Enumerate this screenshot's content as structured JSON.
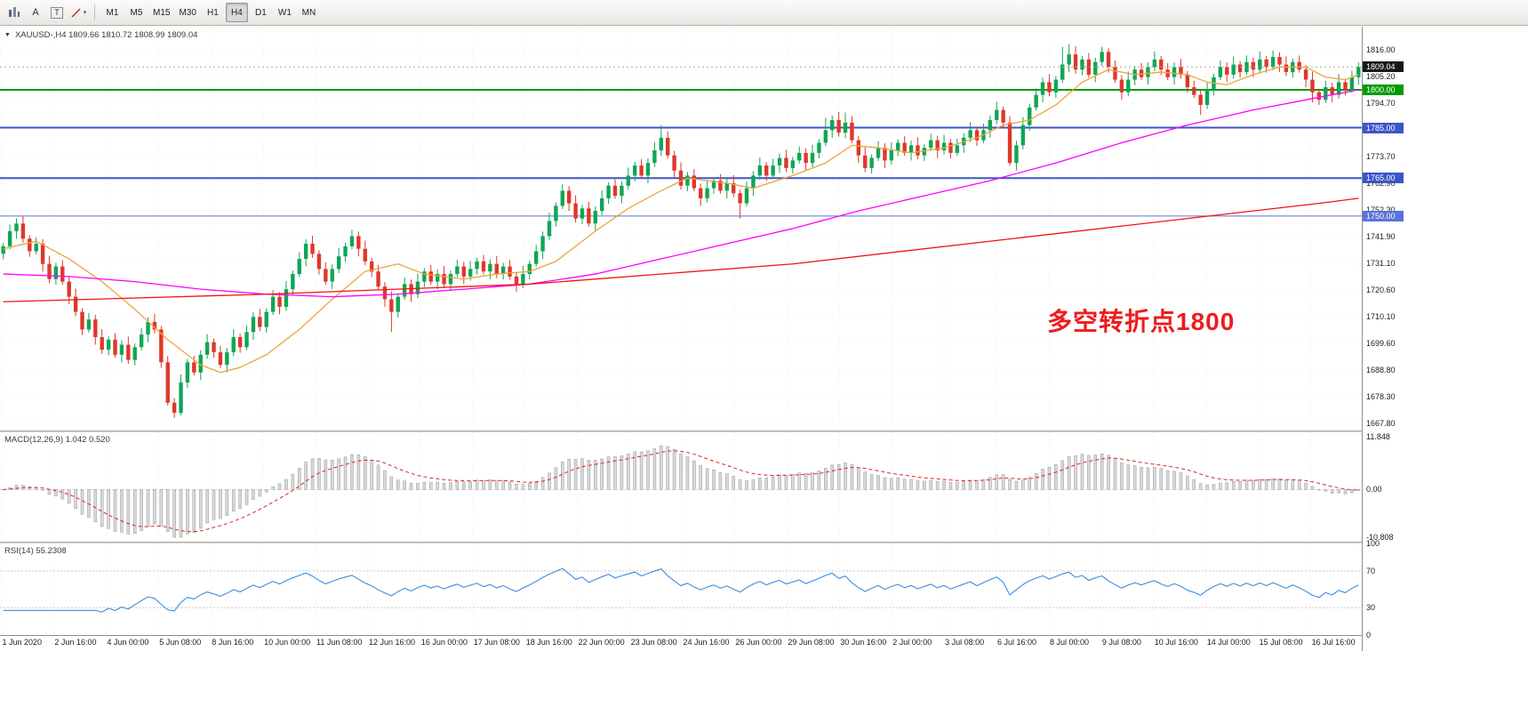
{
  "toolbar": {
    "tools": {
      "annotate_label": "A",
      "text_label": "T"
    },
    "timeframes": [
      "M1",
      "M5",
      "M15",
      "M30",
      "H1",
      "H4",
      "D1",
      "W1",
      "MN"
    ],
    "active_timeframe": "H4"
  },
  "chart": {
    "symbol_ohlc": "XAUUSD-,H4 1809.66 1810.72 1808.99 1809.04",
    "annotation_text": "多空转折点1800"
  },
  "indicators": {
    "macd_label": "MACD(12,26,9) 1.042 0.520",
    "rsi_label": "RSI(14) 55.2308"
  },
  "chart_data": {
    "type": "candlestick",
    "symbol": "XAUUSD",
    "timeframe": "H4",
    "current_ohlc": {
      "open": 1809.66,
      "high": 1810.72,
      "low": 1808.99,
      "close": 1809.04
    },
    "price_axis": {
      "top_price": 1825,
      "bottom_price": 1665,
      "ticks": [
        "1816.00",
        "1805.20",
        "1794.70",
        "1773.70",
        "1762.90",
        "1752.30",
        "1741.90",
        "1731.10",
        "1720.60",
        "1710.10",
        "1699.60",
        "1688.80",
        "1678.30",
        "1667.80"
      ]
    },
    "current_price": {
      "value": 1809.04,
      "label": "1809.04",
      "badge_color": "#15181c"
    },
    "levels": [
      {
        "price": 1800,
        "label": "1800.00",
        "color": "#009b00",
        "width": 2
      },
      {
        "price": 1785,
        "label": "1785.00",
        "color": "#3c55c8",
        "width": 2
      },
      {
        "price": 1765,
        "label": "1765.00",
        "color": "#3c55c8",
        "width": 2
      },
      {
        "price": 1750,
        "label": "1750.00",
        "color": "#5b74d8",
        "width": 1
      }
    ],
    "candles": {
      "first_open": 1735,
      "bull_color": "#0fa655",
      "bear_color": "#e0372a",
      "closes": [
        1738,
        1744,
        1747,
        1741,
        1736,
        1739,
        1731,
        1725,
        1730,
        1724,
        1718,
        1712,
        1705,
        1709,
        1702,
        1697,
        1701,
        1695,
        1699,
        1693,
        1698,
        1703,
        1708,
        1705,
        1692,
        1676,
        1672,
        1684,
        1692,
        1688,
        1695,
        1700,
        1696,
        1691,
        1696,
        1702,
        1698,
        1704,
        1710,
        1706,
        1712,
        1718,
        1714,
        1721,
        1727,
        1733,
        1739,
        1735,
        1729,
        1724,
        1729,
        1734,
        1738,
        1742,
        1737,
        1732,
        1728,
        1722,
        1717,
        1712,
        1718,
        1723,
        1719,
        1724,
        1728,
        1724,
        1727,
        1723,
        1727,
        1730,
        1726,
        1729,
        1732,
        1728,
        1731,
        1727,
        1730,
        1726,
        1723,
        1727,
        1731,
        1736,
        1742,
        1748,
        1754,
        1760,
        1755,
        1749,
        1753,
        1747,
        1752,
        1757,
        1762,
        1758,
        1762,
        1766,
        1770,
        1766,
        1771,
        1776,
        1781,
        1774,
        1768,
        1762,
        1766,
        1761,
        1757,
        1761,
        1764,
        1760,
        1763,
        1759,
        1755,
        1761,
        1766,
        1770,
        1766,
        1770,
        1773,
        1769,
        1772,
        1775,
        1771,
        1775,
        1779,
        1784,
        1788,
        1783,
        1787,
        1780,
        1774,
        1769,
        1773,
        1777,
        1772,
        1776,
        1779,
        1775,
        1778,
        1774,
        1777,
        1780,
        1776,
        1779,
        1775,
        1778,
        1781,
        1784,
        1780,
        1784,
        1788,
        1792,
        1787,
        1771,
        1778,
        1786,
        1793,
        1798,
        1803,
        1799,
        1804,
        1810,
        1814,
        1808,
        1812,
        1806,
        1811,
        1815,
        1809,
        1804,
        1799,
        1804,
        1808,
        1805,
        1809,
        1812,
        1808,
        1805,
        1809,
        1806,
        1801,
        1798,
        1794,
        1800,
        1805,
        1809,
        1806,
        1810,
        1807,
        1811,
        1808,
        1812,
        1809,
        1813,
        1810,
        1807,
        1811,
        1808,
        1804,
        1799,
        1796,
        1801,
        1798,
        1803,
        1800,
        1805,
        1809
      ],
      "wick_overrides": {
        "2": {
          "high": 1749
        },
        "26": {
          "low": 1670
        },
        "27": {
          "low": 1671
        },
        "59": {
          "low": 1704
        },
        "100": {
          "high": 1786
        },
        "112": {
          "low": 1749
        },
        "125": {
          "high": 1789
        },
        "128": {
          "high": 1791
        },
        "161": {
          "high": 1817
        },
        "162": {
          "high": 1818
        },
        "167": {
          "high": 1817
        },
        "182": {
          "low": 1790
        },
        "199": {
          "low": 1795
        },
        "200": {
          "low": 1794
        }
      }
    },
    "moving_averages": [
      {
        "name": "ma-fast-orange",
        "color": "#eda53a",
        "anchors": [
          [
            0,
            1737
          ],
          [
            5,
            1740
          ],
          [
            10,
            1733
          ],
          [
            15,
            1724
          ],
          [
            20,
            1713
          ],
          [
            25,
            1701
          ],
          [
            30,
            1691
          ],
          [
            33,
            1688
          ],
          [
            36,
            1690
          ],
          [
            40,
            1695
          ],
          [
            45,
            1705
          ],
          [
            50,
            1717
          ],
          [
            55,
            1728
          ],
          [
            60,
            1731
          ],
          [
            64,
            1727
          ],
          [
            70,
            1725
          ],
          [
            75,
            1727
          ],
          [
            80,
            1728
          ],
          [
            84,
            1732
          ],
          [
            90,
            1744
          ],
          [
            95,
            1753
          ],
          [
            100,
            1760
          ],
          [
            104,
            1765
          ],
          [
            110,
            1763
          ],
          [
            114,
            1761
          ],
          [
            120,
            1766
          ],
          [
            125,
            1771
          ],
          [
            129,
            1778
          ],
          [
            133,
            1777
          ],
          [
            138,
            1775
          ],
          [
            143,
            1777
          ],
          [
            148,
            1781
          ],
          [
            152,
            1786
          ],
          [
            156,
            1788
          ],
          [
            160,
            1794
          ],
          [
            164,
            1803
          ],
          [
            168,
            1808
          ],
          [
            172,
            1806
          ],
          [
            176,
            1807
          ],
          [
            180,
            1806
          ],
          [
            183,
            1803
          ],
          [
            186,
            1802
          ],
          [
            190,
            1806
          ],
          [
            194,
            1809
          ],
          [
            198,
            1809
          ],
          [
            201,
            1805
          ],
          [
            204,
            1804
          ],
          [
            206,
            1806
          ]
        ]
      },
      {
        "name": "ma-medium-magenta",
        "color": "#ff00ff",
        "anchors": [
          [
            0,
            1727
          ],
          [
            10,
            1726
          ],
          [
            20,
            1724
          ],
          [
            30,
            1721
          ],
          [
            40,
            1719
          ],
          [
            50,
            1718
          ],
          [
            60,
            1719
          ],
          [
            70,
            1721
          ],
          [
            80,
            1723
          ],
          [
            90,
            1727
          ],
          [
            100,
            1733
          ],
          [
            110,
            1739
          ],
          [
            120,
            1745
          ],
          [
            130,
            1752
          ],
          [
            140,
            1758
          ],
          [
            150,
            1764
          ],
          [
            160,
            1771
          ],
          [
            170,
            1779
          ],
          [
            180,
            1786
          ],
          [
            190,
            1792
          ],
          [
            200,
            1797
          ],
          [
            206,
            1800
          ]
        ]
      },
      {
        "name": "ma-slow-red",
        "color": "#f01414",
        "anchors": [
          [
            0,
            1716
          ],
          [
            40,
            1719
          ],
          [
            80,
            1723
          ],
          [
            120,
            1731
          ],
          [
            160,
            1743
          ],
          [
            200,
            1755
          ],
          [
            206,
            1757
          ]
        ]
      }
    ],
    "macd": {
      "axis_labels": [
        "11.848",
        "0.00",
        "-10.808"
      ],
      "axis_values": [
        11.848,
        0,
        -10.808
      ],
      "histogram_fill": "#d8d8d8",
      "histogram_stroke": "#a6a6a6",
      "signal_color": "#e22222"
    },
    "rsi": {
      "axis_labels": [
        "100",
        "70",
        "30",
        "0"
      ],
      "levels": [
        70,
        30
      ],
      "color": "#3a8dde"
    },
    "time_axis": {
      "labels": [
        "1 Jun 2020",
        "2 Jun 16:00",
        "4 Jun 00:00",
        "5 Jun 08:00",
        "8 Jun 16:00",
        "10 Jun 00:00",
        "11 Jun 08:00",
        "12 Jun 16:00",
        "16 Jun 00:00",
        "17 Jun 08:00",
        "18 Jun 16:00",
        "22 Jun 00:00",
        "23 Jun 08:00",
        "24 Jun 16:00",
        "26 Jun 00:00",
        "29 Jun 08:00",
        "30 Jun 16:00",
        "2 Jul 00:00",
        "3 Jul 08:00",
        "6 Jul 16:00",
        "8 Jul 00:00",
        "9 Jul 08:00",
        "10 Jul 16:00",
        "14 Jul 00:00",
        "15 Jul 08:00",
        "16 Jul 16:00"
      ]
    }
  }
}
